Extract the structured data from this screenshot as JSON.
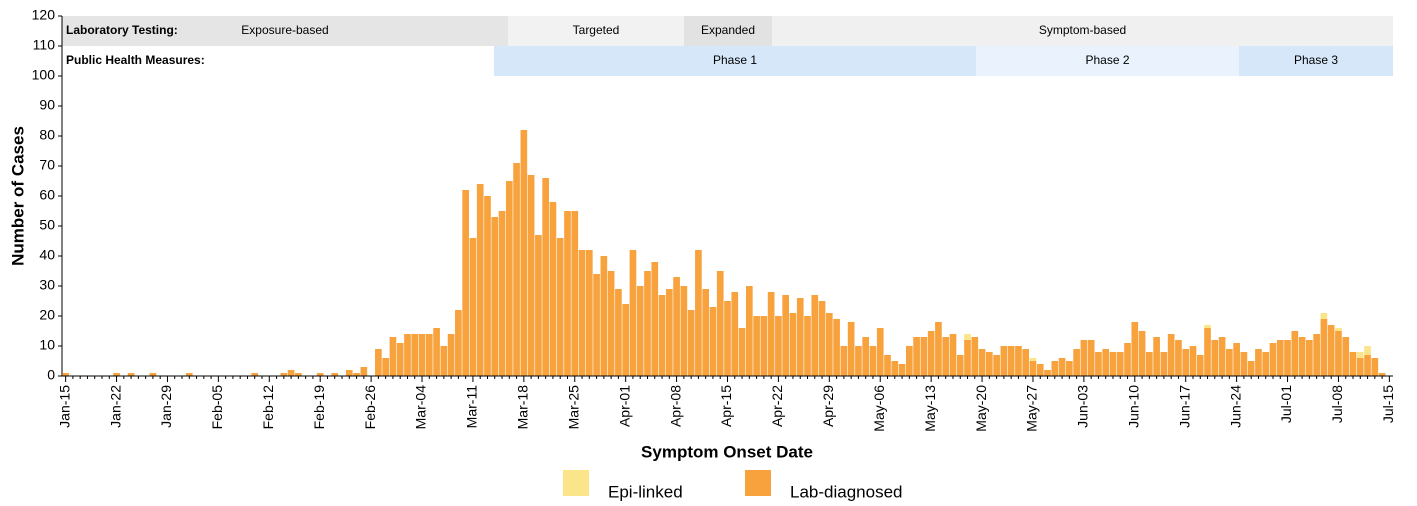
{
  "chart_data": {
    "type": "stacked-bar",
    "x_label": "Symptom Onset Date",
    "y_label": "Number of Cases",
    "categories": [
      "Jan-15",
      null,
      null,
      null,
      null,
      null,
      null,
      "Jan-22",
      null,
      null,
      null,
      null,
      null,
      null,
      "Jan-29",
      null,
      null,
      null,
      null,
      null,
      null,
      "Feb-05",
      null,
      null,
      null,
      null,
      null,
      null,
      "Feb-12",
      null,
      null,
      null,
      null,
      null,
      null,
      "Feb-19",
      null,
      null,
      null,
      null,
      null,
      null,
      "Feb-26",
      null,
      null,
      null,
      null,
      null,
      null,
      "Mar-04",
      null,
      null,
      null,
      null,
      null,
      null,
      "Mar-11",
      null,
      null,
      null,
      null,
      null,
      null,
      "Mar-18",
      null,
      null,
      null,
      null,
      null,
      null,
      "Mar-25",
      null,
      null,
      null,
      null,
      null,
      null,
      "Apr-01",
      null,
      null,
      null,
      null,
      null,
      null,
      "Apr-08",
      null,
      null,
      null,
      null,
      null,
      null,
      "Apr-15",
      null,
      null,
      null,
      null,
      null,
      null,
      "Apr-22",
      null,
      null,
      null,
      null,
      null,
      null,
      "Apr-29",
      null,
      null,
      null,
      null,
      null,
      null,
      "May-06",
      null,
      null,
      null,
      null,
      null,
      null,
      "May-13",
      null,
      null,
      null,
      null,
      null,
      null,
      "May-20",
      null,
      null,
      null,
      null,
      null,
      null,
      "May-27",
      null,
      null,
      null,
      null,
      null,
      null,
      "Jun-03",
      null,
      null,
      null,
      null,
      null,
      null,
      "Jun-10",
      null,
      null,
      null,
      null,
      null,
      null,
      "Jun-17",
      null,
      null,
      null,
      null,
      null,
      null,
      "Jun-24",
      null,
      null,
      null,
      null,
      null,
      null,
      "Jul-01",
      null,
      null,
      null,
      null,
      null,
      null,
      "Jul-08",
      null,
      null,
      null,
      null,
      null,
      null,
      "Jul-15"
    ],
    "series": [
      {
        "name": "Epi-linked",
        "color": "#fbe58a",
        "values": [
          0,
          0,
          0,
          0,
          0,
          0,
          0,
          0,
          0,
          0,
          0,
          0,
          0,
          0,
          0,
          0,
          0,
          0,
          0,
          0,
          0,
          0,
          0,
          0,
          0,
          0,
          0,
          0,
          0,
          0,
          0,
          0,
          0,
          0,
          0,
          0,
          0,
          0,
          0,
          0,
          0,
          0,
          0,
          0,
          0,
          0,
          0,
          0,
          0,
          0,
          0,
          0,
          0,
          0,
          0,
          0,
          0,
          0,
          0,
          0,
          0,
          0,
          0,
          0,
          0,
          0,
          0,
          0,
          0,
          0,
          0,
          0,
          0,
          0,
          0,
          0,
          0,
          0,
          0,
          0,
          0,
          0,
          0,
          0,
          0,
          0,
          0,
          0,
          0,
          0,
          0,
          0,
          0,
          0,
          0,
          0,
          0,
          0,
          0,
          0,
          0,
          0,
          0,
          0,
          0,
          0,
          0,
          0,
          0,
          0,
          0,
          0,
          0,
          0,
          0,
          0,
          0,
          0,
          0,
          0,
          0,
          0,
          0,
          0,
          2,
          0,
          0,
          0,
          0,
          0,
          0,
          0,
          0,
          1,
          0,
          0,
          0,
          0,
          0,
          0,
          0,
          0,
          0,
          0,
          0,
          0,
          0,
          0,
          0,
          0,
          0,
          0,
          0,
          0,
          0,
          0,
          0,
          1,
          0,
          0,
          0,
          0,
          0,
          0,
          0,
          0,
          0,
          0,
          0,
          0,
          0,
          0,
          0,
          2,
          0,
          1,
          0,
          0,
          2,
          3,
          0,
          0,
          0
        ]
      },
      {
        "name": "Lab-diagnosed",
        "color": "#f7a23c",
        "values": [
          1,
          0,
          0,
          0,
          0,
          0,
          0,
          1,
          0,
          1,
          0,
          0,
          1,
          0,
          0,
          0,
          0,
          1,
          0,
          0,
          0,
          0,
          0,
          0,
          0,
          0,
          1,
          0,
          0,
          0,
          1,
          2,
          1,
          0,
          0,
          1,
          0,
          1,
          0,
          2,
          1,
          3,
          0,
          9,
          6,
          13,
          11,
          14,
          14,
          14,
          14,
          16,
          10,
          14,
          22,
          62,
          46,
          64,
          60,
          53,
          55,
          65,
          71,
          82,
          67,
          47,
          66,
          58,
          46,
          55,
          55,
          42,
          42,
          34,
          40,
          35,
          29,
          24,
          42,
          30,
          35,
          38,
          27,
          29,
          33,
          30,
          22,
          42,
          29,
          23,
          35,
          25,
          28,
          16,
          30,
          20,
          20,
          28,
          20,
          27,
          21,
          26,
          20,
          27,
          25,
          21,
          19,
          10,
          18,
          10,
          13,
          10,
          16,
          7,
          5,
          4,
          10,
          13,
          13,
          15,
          18,
          13,
          14,
          7,
          12,
          13,
          9,
          8,
          7,
          10,
          10,
          10,
          9,
          5,
          4,
          2,
          5,
          6,
          5,
          9,
          12,
          12,
          8,
          9,
          8,
          8,
          11,
          18,
          15,
          8,
          13,
          8,
          14,
          12,
          9,
          10,
          7,
          16,
          12,
          13,
          9,
          11,
          8,
          5,
          9,
          8,
          11,
          12,
          12,
          15,
          13,
          12,
          14,
          19,
          17,
          15,
          13,
          8,
          6,
          7,
          6,
          1,
          0
        ]
      }
    ],
    "ylim": [
      0,
      120
    ],
    "yticks": [
      0,
      10,
      20,
      30,
      40,
      50,
      60,
      70,
      80,
      90,
      100,
      110,
      120
    ],
    "grid": false,
    "annotations": {
      "testing": {
        "label": "Laboratory Testing:",
        "phases": [
          "Exposure-based",
          "Targeted",
          "Expanded",
          "Symptom-based"
        ]
      },
      "measures": {
        "label": "Public Health Measures:",
        "phases": [
          "Phase 1",
          "Phase 2",
          "Phase 3"
        ]
      }
    }
  }
}
